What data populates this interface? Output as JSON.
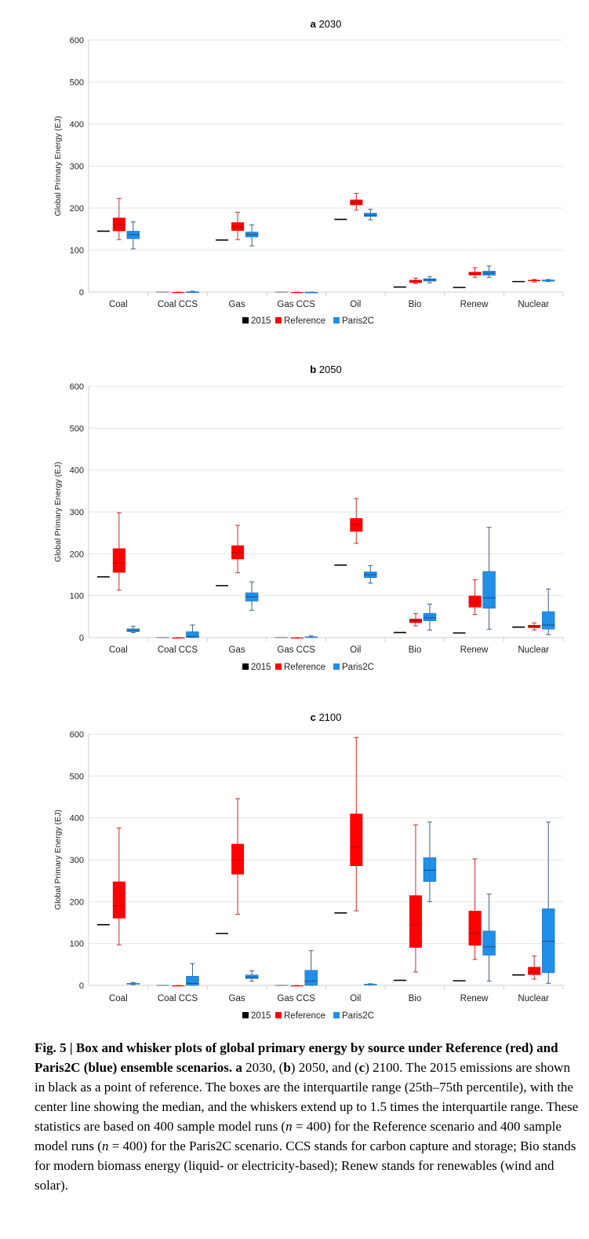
{
  "chart_data": [
    {
      "type": "box",
      "panel_letter": "a",
      "title": "2030",
      "ylabel": "Global Primary Energy (EJ)",
      "ylim": [
        0,
        600
      ],
      "yticks": [
        0,
        100,
        200,
        300,
        400,
        500,
        600
      ],
      "categories": [
        "Coal",
        "Coal CCS",
        "Gas",
        "Gas CCS",
        "Oil",
        "Bio",
        "Renew",
        "Nuclear"
      ],
      "legend": [
        "2015",
        "Reference",
        "Paris2C"
      ],
      "series": [
        {
          "name": "2015",
          "color": "#000000",
          "values": [
            145,
            0,
            124,
            0,
            173,
            12,
            11,
            25
          ]
        },
        {
          "name": "Reference",
          "color": "#ff0000",
          "boxes": [
            {
              "min": 125,
              "q1": 145,
              "median": 160,
              "q3": 177,
              "max": 223
            },
            {
              "min": 0,
              "q1": 0,
              "median": 0,
              "q3": 0,
              "max": 0
            },
            {
              "min": 125,
              "q1": 146,
              "median": 155,
              "q3": 166,
              "max": 190
            },
            {
              "min": 0,
              "q1": 0,
              "median": 0,
              "q3": 0,
              "max": 0
            },
            {
              "min": 195,
              "q1": 207,
              "median": 213,
              "q3": 220,
              "max": 235
            },
            {
              "min": 20,
              "q1": 22,
              "median": 26,
              "q3": 29,
              "max": 33
            },
            {
              "min": 35,
              "q1": 40,
              "median": 43,
              "q3": 48,
              "max": 58
            },
            {
              "min": 24,
              "q1": 26,
              "median": 27,
              "q3": 29,
              "max": 30
            }
          ]
        },
        {
          "name": "Paris2C",
          "color": "#1f8fe8",
          "boxes": [
            {
              "min": 103,
              "q1": 127,
              "median": 137,
              "q3": 145,
              "max": 167
            },
            {
              "min": 0,
              "q1": 0,
              "median": 1,
              "q3": 1,
              "max": 2
            },
            {
              "min": 110,
              "q1": 131,
              "median": 137,
              "q3": 143,
              "max": 160
            },
            {
              "min": 0,
              "q1": 0,
              "median": 0,
              "q3": 0,
              "max": 0
            },
            {
              "min": 172,
              "q1": 180,
              "median": 183,
              "q3": 188,
              "max": 197
            },
            {
              "min": 22,
              "q1": 26,
              "median": 29,
              "q3": 32,
              "max": 37
            },
            {
              "min": 35,
              "q1": 40,
              "median": 45,
              "q3": 50,
              "max": 62
            },
            {
              "min": 25,
              "q1": 26,
              "median": 27,
              "q3": 29,
              "max": 30
            }
          ]
        }
      ]
    },
    {
      "type": "box",
      "panel_letter": "b",
      "title": "2050",
      "ylabel": "Global Primary Energy (EJ)",
      "ylim": [
        0,
        600
      ],
      "yticks": [
        0,
        100,
        200,
        300,
        400,
        500,
        600
      ],
      "categories": [
        "Coal",
        "Coal CCS",
        "Gas",
        "Gas CCS",
        "Oil",
        "Bio",
        "Renew",
        "Nuclear"
      ],
      "legend": [
        "2015",
        "Reference",
        "Paris2C"
      ],
      "series": [
        {
          "name": "2015",
          "color": "#000000",
          "values": [
            145,
            0,
            124,
            0,
            173,
            12,
            11,
            25
          ]
        },
        {
          "name": "Reference",
          "color": "#ff0000",
          "boxes": [
            {
              "min": 113,
              "q1": 155,
              "median": 178,
              "q3": 213,
              "max": 298
            },
            {
              "min": 0,
              "q1": 0,
              "median": 0,
              "q3": 0,
              "max": 0
            },
            {
              "min": 155,
              "q1": 187,
              "median": 203,
              "q3": 220,
              "max": 268
            },
            {
              "min": 0,
              "q1": 0,
              "median": 0,
              "q3": 0,
              "max": 0
            },
            {
              "min": 225,
              "q1": 253,
              "median": 270,
              "q3": 285,
              "max": 332
            },
            {
              "min": 28,
              "q1": 35,
              "median": 40,
              "q3": 45,
              "max": 57
            },
            {
              "min": 55,
              "q1": 72,
              "median": 85,
              "q3": 100,
              "max": 138
            },
            {
              "min": 18,
              "q1": 23,
              "median": 27,
              "q3": 30,
              "max": 35
            }
          ]
        },
        {
          "name": "Paris2C",
          "color": "#1f8fe8",
          "boxes": [
            {
              "min": 12,
              "q1": 14,
              "median": 17,
              "q3": 21,
              "max": 27
            },
            {
              "min": 0,
              "q1": 0,
              "median": 2,
              "q3": 14,
              "max": 30
            },
            {
              "min": 65,
              "q1": 87,
              "median": 97,
              "q3": 107,
              "max": 133
            },
            {
              "min": 0,
              "q1": 0,
              "median": 1,
              "q3": 2,
              "max": 4
            },
            {
              "min": 130,
              "q1": 143,
              "median": 150,
              "q3": 157,
              "max": 172
            },
            {
              "min": 18,
              "q1": 40,
              "median": 47,
              "q3": 58,
              "max": 80
            },
            {
              "min": 20,
              "q1": 70,
              "median": 95,
              "q3": 158,
              "max": 263
            },
            {
              "min": 7,
              "q1": 20,
              "median": 30,
              "q3": 62,
              "max": 116
            }
          ]
        }
      ]
    },
    {
      "type": "box",
      "panel_letter": "c",
      "title": "2100",
      "ylabel": "Global Primary Energy (EJ)",
      "ylim": [
        0,
        600
      ],
      "yticks": [
        0,
        100,
        200,
        300,
        400,
        500,
        600
      ],
      "categories": [
        "Coal",
        "Coal CCS",
        "Gas",
        "Gas CCS",
        "Oil",
        "Bio",
        "Renew",
        "Nuclear"
      ],
      "legend": [
        "2015",
        "Reference",
        "Paris2C"
      ],
      "series": [
        {
          "name": "2015",
          "color": "#000000",
          "values": [
            145,
            0,
            124,
            0,
            173,
            12,
            11,
            25
          ]
        },
        {
          "name": "Reference",
          "color": "#ff0000",
          "boxes": [
            {
              "min": 97,
              "q1": 160,
              "median": 190,
              "q3": 248,
              "max": 376
            },
            {
              "min": 0,
              "q1": 0,
              "median": 0,
              "q3": 0,
              "max": 0
            },
            {
              "min": 170,
              "q1": 265,
              "median": 300,
              "q3": 338,
              "max": 446
            },
            {
              "min": 0,
              "q1": 0,
              "median": 0,
              "q3": 0,
              "max": 0
            },
            {
              "min": 178,
              "q1": 285,
              "median": 330,
              "q3": 410,
              "max": 592
            },
            {
              "min": 32,
              "q1": 90,
              "median": 145,
              "q3": 215,
              "max": 383
            },
            {
              "min": 62,
              "q1": 95,
              "median": 125,
              "q3": 178,
              "max": 302
            },
            {
              "min": 15,
              "q1": 25,
              "median": 32,
              "q3": 44,
              "max": 70
            }
          ]
        },
        {
          "name": "Paris2C",
          "color": "#1f8fe8",
          "boxes": [
            {
              "min": 2,
              "q1": 3,
              "median": 4,
              "q3": 5,
              "max": 7
            },
            {
              "min": 0,
              "q1": 0,
              "median": 5,
              "q3": 22,
              "max": 52
            },
            {
              "min": 10,
              "q1": 16,
              "median": 20,
              "q3": 25,
              "max": 35
            },
            {
              "min": 0,
              "q1": 0,
              "median": 10,
              "q3": 36,
              "max": 83
            },
            {
              "min": 1,
              "q1": 2,
              "median": 2,
              "q3": 3,
              "max": 4
            },
            {
              "min": 200,
              "q1": 248,
              "median": 275,
              "q3": 305,
              "max": 390
            },
            {
              "min": 10,
              "q1": 72,
              "median": 92,
              "q3": 130,
              "max": 218
            },
            {
              "min": 5,
              "q1": 30,
              "median": 105,
              "q3": 183,
              "max": 390
            }
          ]
        }
      ]
    }
  ],
  "caption": {
    "fig_label": "Fig. 5 | Box and whisker plots of global primary energy by source under Reference (red) and Paris2C (blue) ensemble scenarios.",
    "part1_a": "a",
    "part1_text": " 2030, (",
    "part2_b": "b",
    "part2_text": ") 2050, and (",
    "part3_c": "c",
    "part3_text": ") 2100. The 2015 emissions are shown in black as a point of reference. The boxes are the interquartile range (25th–75th percentile), with the center line showing the median, and the whiskers extend up to 1.5 times the interquartile range. These statistics are based on 400 sample model runs (",
    "n_var_1": "n",
    "n_eq_1": " = 400) for the Reference scenario and 400 sample model runs (",
    "n_var_2": "n",
    "n_eq_2": " = 400) for the Paris2C scenario. CCS stands for carbon capture and storage; Bio stands for modern biomass energy (liquid- or electricity-based); Renew stands for renewables (wind and solar)."
  }
}
